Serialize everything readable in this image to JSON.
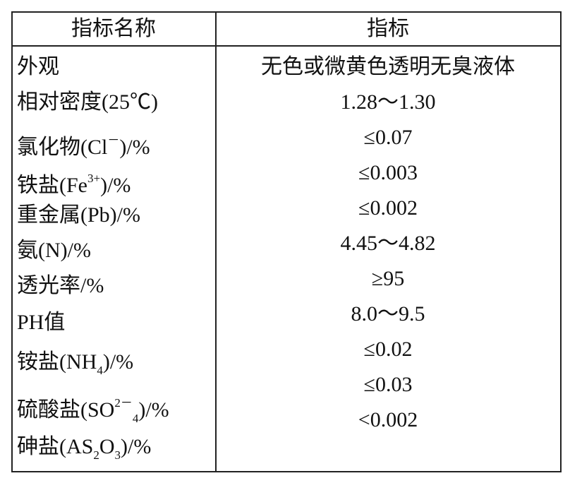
{
  "table": {
    "header": [
      "指标名称",
      "指标"
    ],
    "rows": [
      {
        "name": [
          {
            "text": "外观"
          }
        ],
        "spec": "无色或微黄色透明无臭液体"
      },
      {
        "name": [
          {
            "text": "相对密度(25℃)"
          }
        ],
        "spec": "1.28～1.30"
      },
      {
        "name": [
          {
            "text": "氯化物(Cl"
          },
          {
            "sup": "－"
          },
          {
            "text": ")/%"
          }
        ],
        "spec": "≤0.07"
      },
      {
        "name": [
          {
            "text": "铁盐(Fe"
          },
          {
            "sup": "3+"
          },
          {
            "text": ")/%"
          }
        ],
        "spec": "≤0.003"
      },
      {
        "name": [
          {
            "text": "重金属(Pb)/%"
          }
        ],
        "spec": "≤0.002"
      },
      {
        "name": [
          {
            "text": "氨(N)/%"
          }
        ],
        "spec": "4.45～4.82"
      },
      {
        "name": [
          {
            "text": "透光率/%"
          }
        ],
        "spec": "≥95"
      },
      {
        "name": [
          {
            "text": "PH值"
          }
        ],
        "spec": "8.0～9.5"
      },
      {
        "name": [
          {
            "text": "铵盐(NH"
          },
          {
            "sub": "4"
          },
          {
            "text": ")/%"
          }
        ],
        "spec": "≤0.02"
      },
      {
        "name": [
          {
            "text": "硫酸盐(SO"
          },
          {
            "sup": "2－"
          },
          {
            "sub": "4"
          },
          {
            "text": ")/%"
          }
        ],
        "spec": "≤0.03"
      },
      {
        "name": [
          {
            "text": "砷盐(AS"
          },
          {
            "sub": "2"
          },
          {
            "text": "O"
          },
          {
            "sub": "3"
          },
          {
            "text": ")/%"
          }
        ],
        "spec": "<0.002"
      }
    ]
  }
}
